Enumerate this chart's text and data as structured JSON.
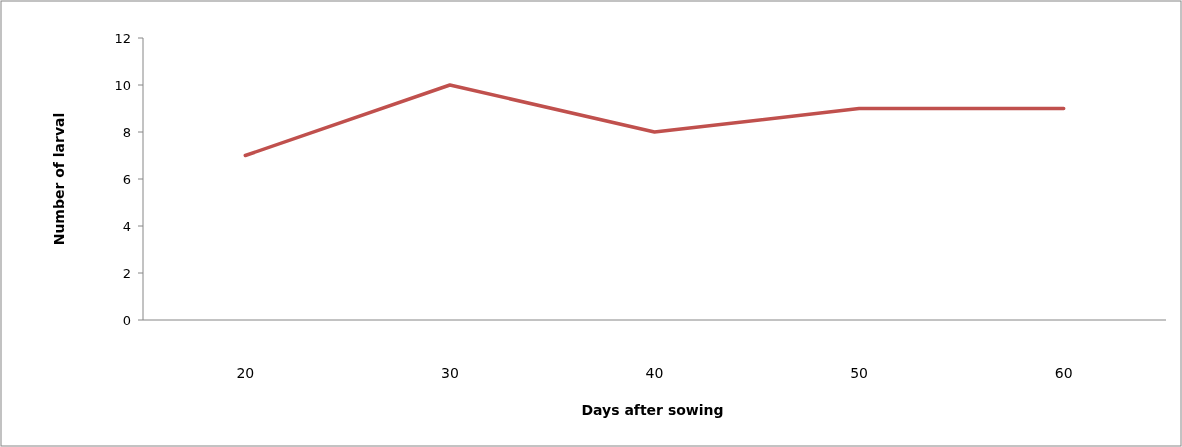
{
  "chart_data": {
    "type": "line",
    "xlabel": "Days after sowing",
    "ylabel": "Number of larval",
    "categories": [
      "20",
      "30",
      "40",
      "50",
      "60"
    ],
    "series": [
      {
        "color": "#c0504d",
        "values": [
          7,
          10,
          8,
          9,
          9
        ]
      }
    ],
    "ylim": [
      0,
      12
    ],
    "yticks": [
      0,
      2,
      4,
      6,
      8,
      10,
      12
    ],
    "grid": false,
    "marker": "none",
    "line_style": "solid"
  }
}
